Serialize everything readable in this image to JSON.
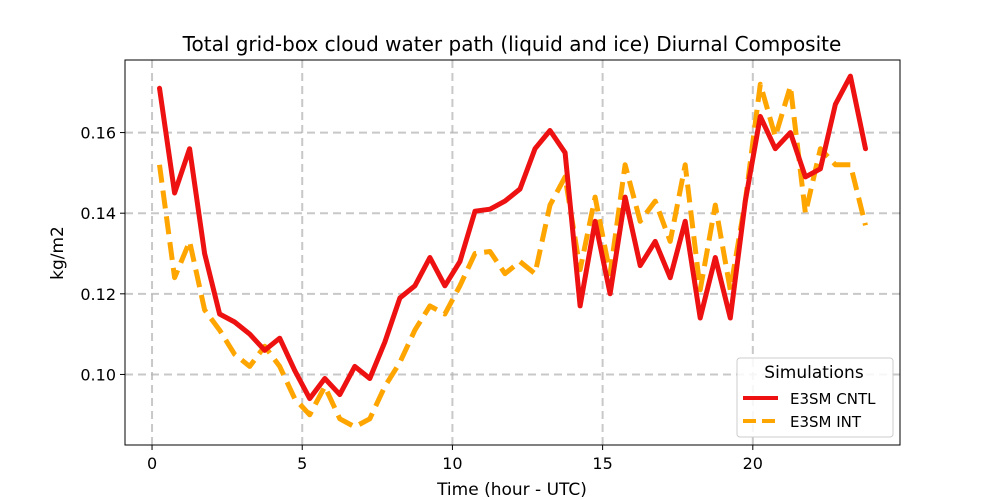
{
  "chart_data": {
    "type": "line",
    "title": "Total grid-box cloud water path (liquid and ice) Diurnal Composite",
    "xlabel": "Time (hour - UTC)",
    "ylabel": "kg/m2",
    "xlim": [
      -0.9,
      24.9
    ],
    "ylim": [
      0.0825,
      0.178
    ],
    "xticks": [
      0,
      5,
      10,
      15,
      20
    ],
    "yticks": [
      0.1,
      0.12,
      0.14,
      0.16
    ],
    "ytick_labels": [
      "0.10",
      "0.12",
      "0.14",
      "0.16"
    ],
    "grid": true,
    "legend": {
      "title": "Simulations",
      "placement": "lower right"
    },
    "x": [
      0.25,
      0.75,
      1.25,
      1.75,
      2.25,
      2.75,
      3.25,
      3.75,
      4.25,
      4.75,
      5.25,
      5.75,
      6.25,
      6.75,
      7.25,
      7.75,
      8.25,
      8.75,
      9.25,
      9.75,
      10.25,
      10.75,
      11.25,
      11.75,
      12.25,
      12.75,
      13.25,
      13.75,
      14.25,
      14.75,
      15.25,
      15.75,
      16.25,
      16.75,
      17.25,
      17.75,
      18.25,
      18.75,
      19.25,
      19.75,
      20.25,
      20.75,
      21.25,
      21.75,
      22.25,
      22.75,
      23.25,
      23.75
    ],
    "series": [
      {
        "name": "E3SM CNTL",
        "color": "#ee1111",
        "style": "solid",
        "values": [
          0.171,
          0.145,
          0.156,
          0.13,
          0.115,
          0.113,
          0.11,
          0.106,
          0.109,
          0.101,
          0.094,
          0.099,
          0.095,
          0.102,
          0.099,
          0.108,
          0.119,
          0.122,
          0.129,
          0.122,
          0.128,
          0.1405,
          0.141,
          0.143,
          0.146,
          0.156,
          0.1605,
          0.155,
          0.117,
          0.138,
          0.12,
          0.144,
          0.127,
          0.133,
          0.124,
          0.138,
          0.114,
          0.129,
          0.114,
          0.143,
          0.164,
          0.156,
          0.16,
          0.149,
          0.151,
          0.167,
          0.174,
          0.156
        ]
      },
      {
        "name": "E3SM INT",
        "color": "#ffa500",
        "style": "dashed",
        "values": [
          0.152,
          0.124,
          0.133,
          0.116,
          0.111,
          0.105,
          0.102,
          0.107,
          0.102,
          0.094,
          0.09,
          0.097,
          0.089,
          0.087,
          0.089,
          0.097,
          0.103,
          0.111,
          0.117,
          0.115,
          0.122,
          0.13,
          0.1305,
          0.125,
          0.128,
          0.125,
          0.142,
          0.149,
          0.126,
          0.144,
          0.125,
          0.152,
          0.138,
          0.143,
          0.133,
          0.152,
          0.121,
          0.142,
          0.121,
          0.143,
          0.172,
          0.159,
          0.1715,
          0.14,
          0.156,
          0.152,
          0.152,
          0.137
        ]
      }
    ]
  }
}
